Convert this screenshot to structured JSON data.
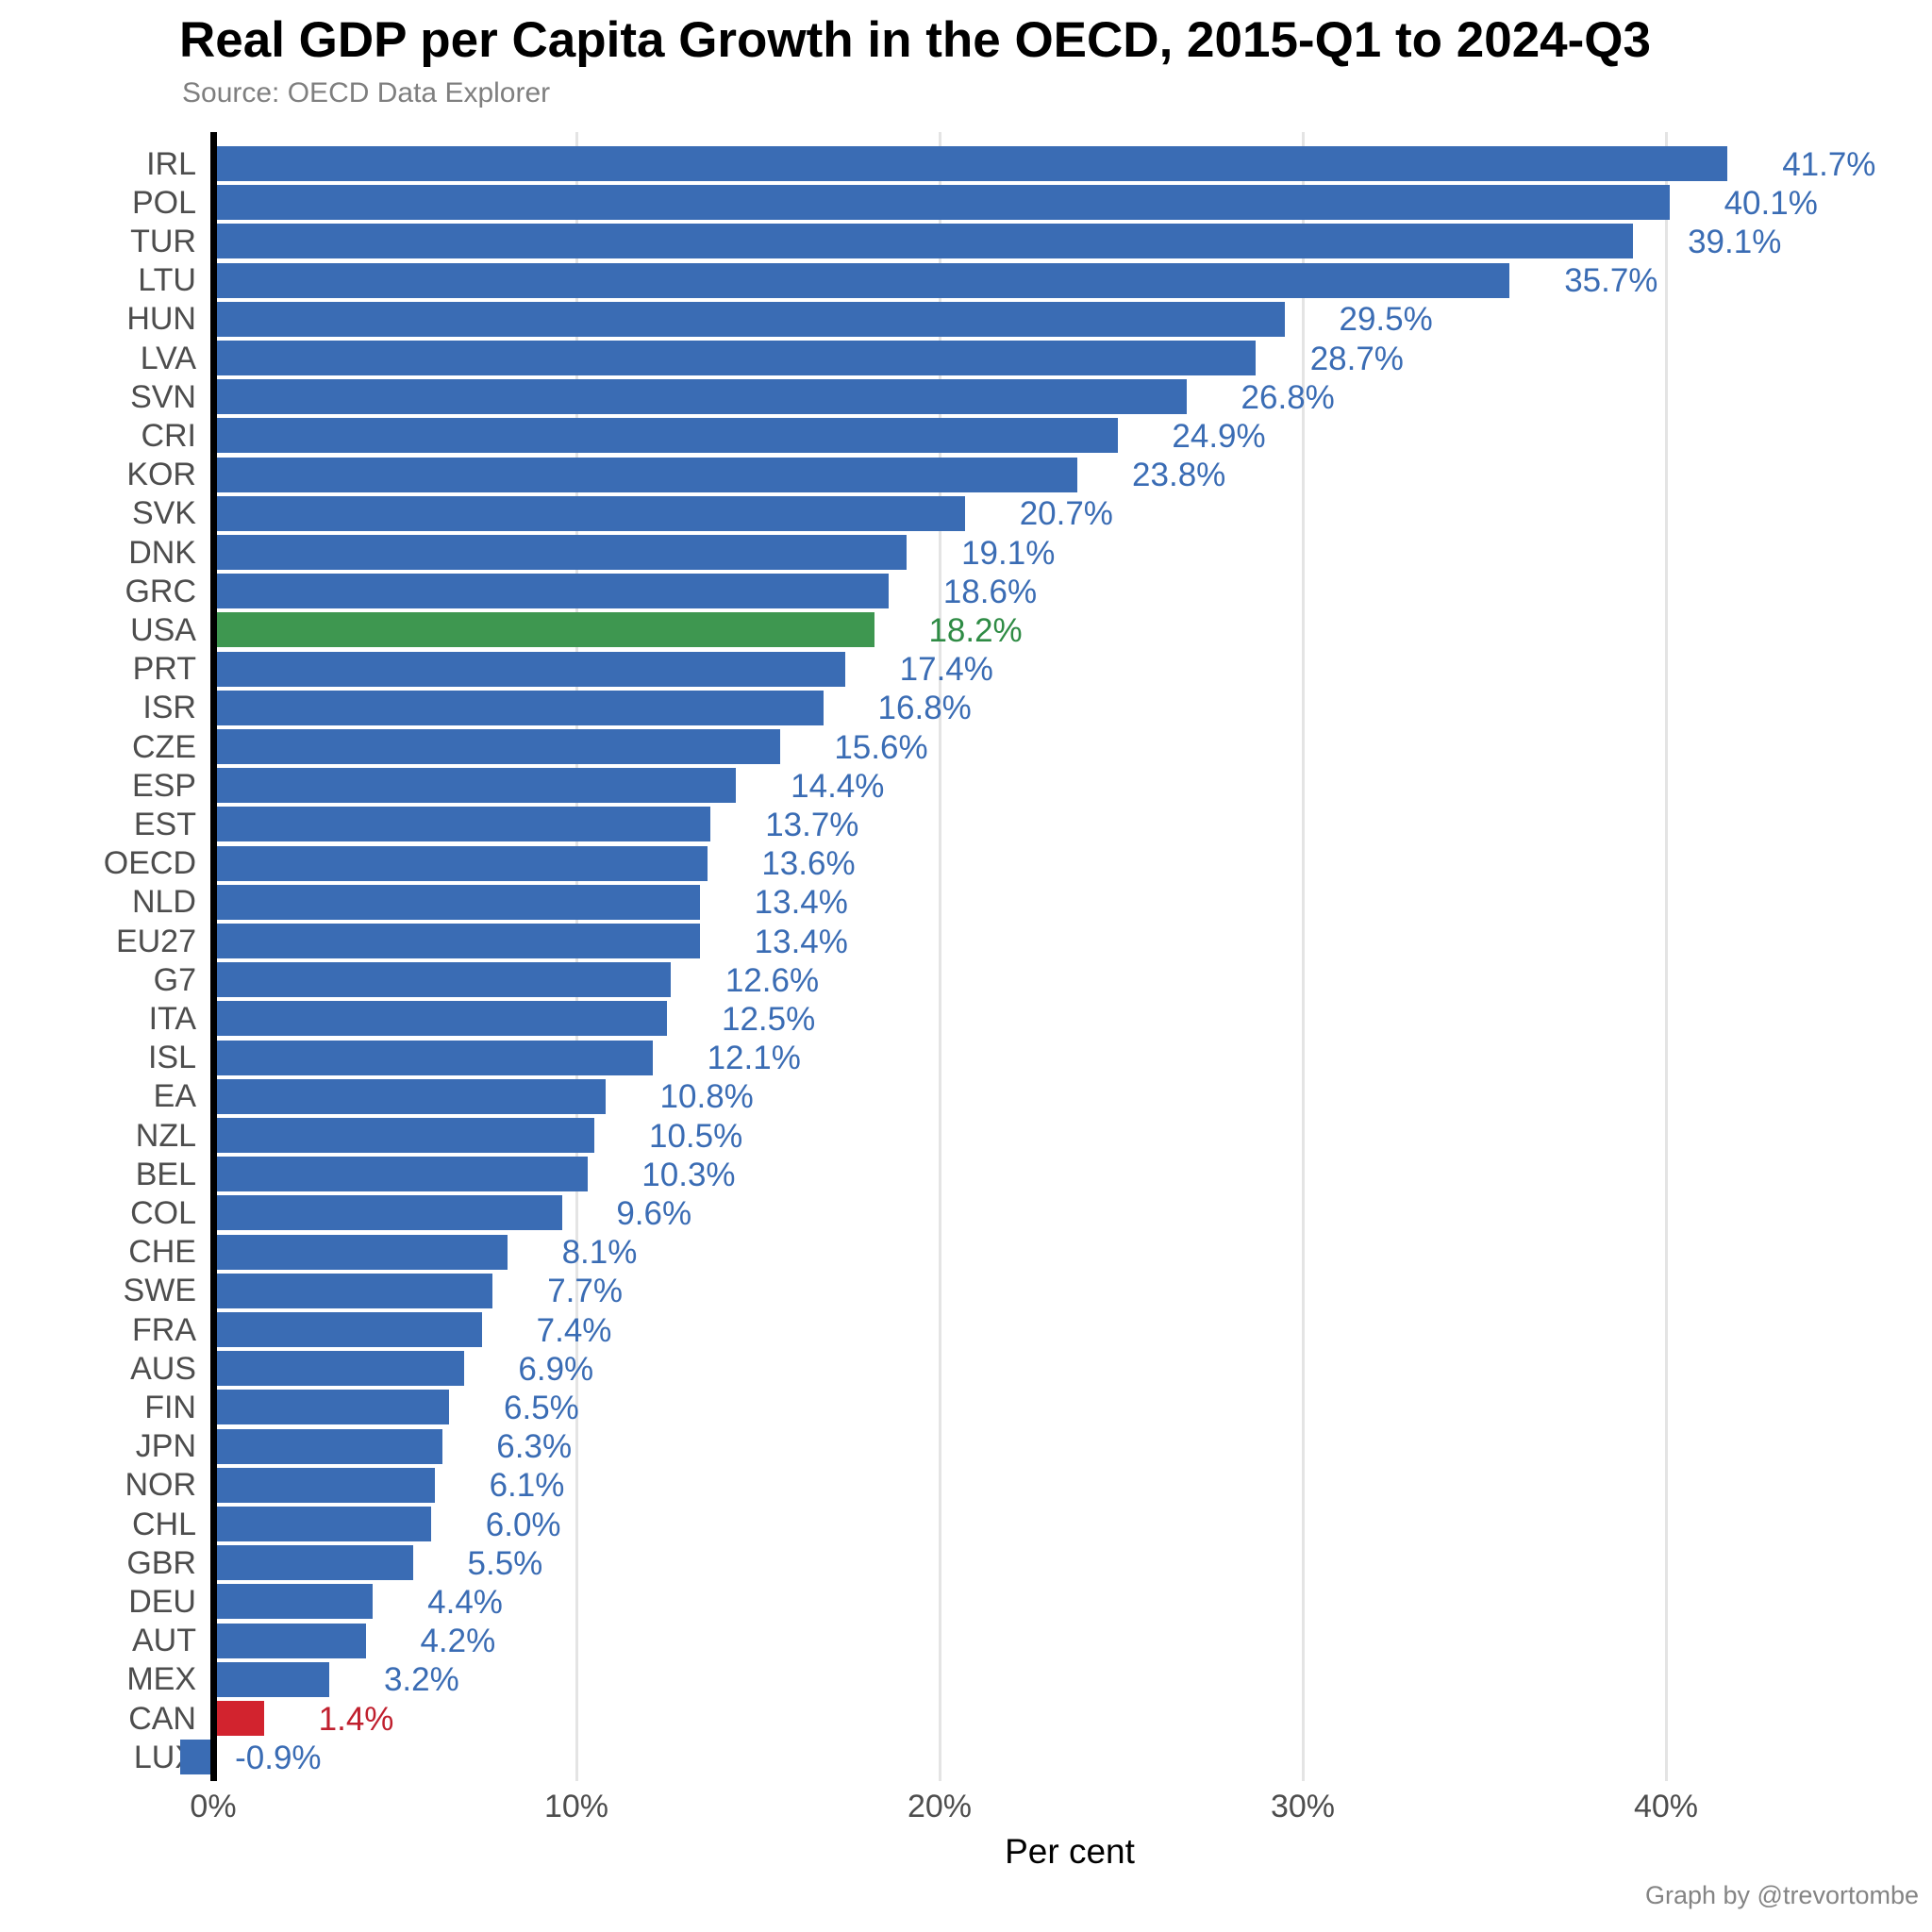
{
  "header": {
    "title": "Real GDP per Capita Growth in the OECD, 2015-Q1 to 2024-Q3",
    "source": "Source: OECD Data Explorer"
  },
  "footer": {
    "credit": "Graph by @trevortombe"
  },
  "colors": {
    "bar_blue": "#3a6cb4",
    "bar_green": "#3e9750",
    "bar_red": "#d2232e",
    "label_blue": "#3a6cb4",
    "label_green": "#2e8b44",
    "label_red": "#c0202e",
    "axis_line": "#000000",
    "gridline": "#e4e4e4",
    "category_text": "#4d4d4d",
    "tick_text": "#4d4d4d",
    "source_text": "#7f7f7f",
    "credit_text": "#848484"
  },
  "chart_data": {
    "type": "bar",
    "orientation": "horizontal",
    "title": "Real GDP per Capita Growth in the OECD, 2015-Q1 to 2024-Q3",
    "subtitle": "Source: OECD Data Explorer",
    "xlabel": "Per cent",
    "ylabel": "",
    "xlim": [
      -2.5,
      47
    ],
    "x_tick_values": [
      0,
      10,
      20,
      30,
      40
    ],
    "x_tick_labels": [
      "0%",
      "10%",
      "20%",
      "30%",
      "40%"
    ],
    "grid": "vertical major gridlines at 10% intervals, white background",
    "legend": "none",
    "highlight_notes": "USA bar/label green, CAN bar/label red, all others blue; LUX bar extends left of zero axis",
    "categories": [
      "IRL",
      "POL",
      "TUR",
      "LTU",
      "HUN",
      "LVA",
      "SVN",
      "CRI",
      "KOR",
      "SVK",
      "DNK",
      "GRC",
      "USA",
      "PRT",
      "ISR",
      "CZE",
      "ESP",
      "EST",
      "OECD",
      "NLD",
      "EU27",
      "G7",
      "ITA",
      "ISL",
      "EA",
      "NZL",
      "BEL",
      "COL",
      "CHE",
      "SWE",
      "FRA",
      "AUS",
      "FIN",
      "JPN",
      "NOR",
      "CHL",
      "GBR",
      "DEU",
      "AUT",
      "MEX",
      "CAN",
      "LUX"
    ],
    "values": [
      41.7,
      40.1,
      39.1,
      35.7,
      29.5,
      28.7,
      26.8,
      24.9,
      23.8,
      20.7,
      19.1,
      18.6,
      18.2,
      17.4,
      16.8,
      15.6,
      14.4,
      13.7,
      13.6,
      13.4,
      13.4,
      12.6,
      12.5,
      12.1,
      10.8,
      10.5,
      10.3,
      9.6,
      8.1,
      7.7,
      7.4,
      6.9,
      6.5,
      6.3,
      6.1,
      6.0,
      5.5,
      4.4,
      4.2,
      3.2,
      1.4,
      -0.9
    ],
    "value_labels": [
      "41.7%",
      "40.1%",
      "39.1%",
      "35.7%",
      "29.5%",
      "28.7%",
      "26.8%",
      "24.9%",
      "23.8%",
      "20.7%",
      "19.1%",
      "18.6%",
      "18.2%",
      "17.4%",
      "16.8%",
      "15.6%",
      "14.4%",
      "13.7%",
      "13.6%",
      "13.4%",
      "13.4%",
      "12.6%",
      "12.5%",
      "12.1%",
      "10.8%",
      "10.5%",
      "10.3%",
      "9.6%",
      "8.1%",
      "7.7%",
      "7.4%",
      "6.9%",
      "6.5%",
      "6.3%",
      "6.1%",
      "6.0%",
      "5.5%",
      "4.4%",
      "4.2%",
      "3.2%",
      "1.4%",
      "-0.9%"
    ],
    "bar_color_keys": [
      "blue",
      "blue",
      "blue",
      "blue",
      "blue",
      "blue",
      "blue",
      "blue",
      "blue",
      "blue",
      "blue",
      "blue",
      "green",
      "blue",
      "blue",
      "blue",
      "blue",
      "blue",
      "blue",
      "blue",
      "blue",
      "blue",
      "blue",
      "blue",
      "blue",
      "blue",
      "blue",
      "blue",
      "blue",
      "blue",
      "blue",
      "blue",
      "blue",
      "blue",
      "blue",
      "blue",
      "blue",
      "blue",
      "blue",
      "blue",
      "red",
      "blue"
    ]
  }
}
